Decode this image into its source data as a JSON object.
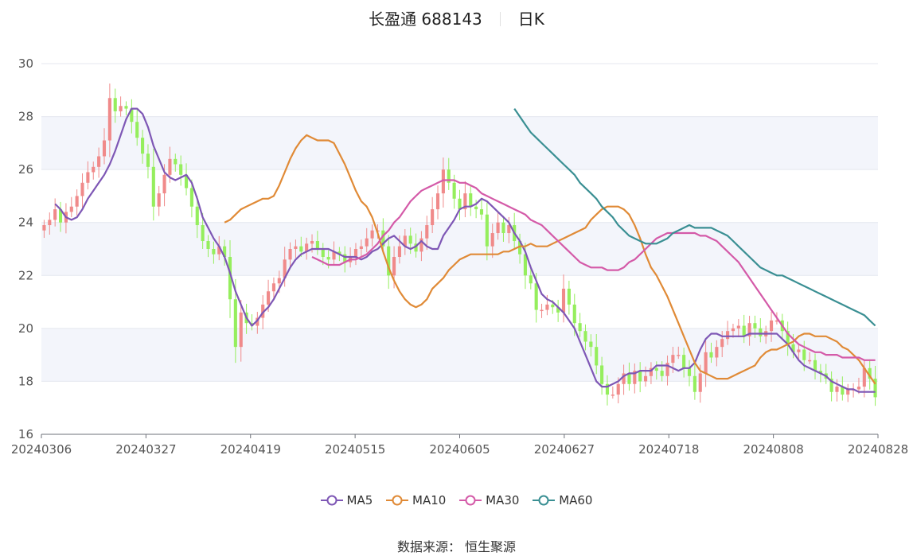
{
  "title": {
    "name": "长盈通 688143",
    "period": "日K"
  },
  "footer": {
    "source_label": "数据来源：",
    "source_name": "恒生聚源"
  },
  "colors": {
    "up": "#f08a8a",
    "down": "#95ee5d",
    "MA5": "#7e57b5",
    "MA10": "#e08a36",
    "MA30": "#d45aa8",
    "MA60": "#3a8f93",
    "grid": "#e4e7ef",
    "band": "#f3f5fb"
  },
  "chart_data": {
    "type": "candlestick",
    "ylim": [
      16,
      30
    ],
    "yticks": [
      16,
      18,
      20,
      22,
      24,
      26,
      28,
      30
    ],
    "xticks": [
      "20240306",
      "20240327",
      "20240419",
      "20240515",
      "20240605",
      "20240627",
      "20240718",
      "20240808",
      "20240828"
    ],
    "legend": [
      "MA5",
      "MA10",
      "MA30",
      "MA60"
    ],
    "closes": [
      23.9,
      24.1,
      24.5,
      24.0,
      24.4,
      24.6,
      25.0,
      25.5,
      25.9,
      26.1,
      26.5,
      27.1,
      28.7,
      28.2,
      28.4,
      28.3,
      27.8,
      27.2,
      26.6,
      26.1,
      24.6,
      25.1,
      25.8,
      26.4,
      26.2,
      25.8,
      25.3,
      24.6,
      23.9,
      23.3,
      23.0,
      22.8,
      23.1,
      22.7,
      21.1,
      19.3,
      20.6,
      20.2,
      20.1,
      20.4,
      20.9,
      21.4,
      21.7,
      21.9,
      22.6,
      23.0,
      23.1,
      22.9,
      23.2,
      23.3,
      23.0,
      22.7,
      22.6,
      22.9,
      22.8,
      22.5,
      22.7,
      23.0,
      23.1,
      23.4,
      23.7,
      23.7,
      23.1,
      22.0,
      22.7,
      23.1,
      23.5,
      23.2,
      22.9,
      23.4,
      23.9,
      24.5,
      25.1,
      26.0,
      25.5,
      24.9,
      24.5,
      25.1,
      24.6,
      24.5,
      24.3,
      23.1,
      23.6,
      24.0,
      23.6,
      23.9,
      23.3,
      22.8,
      22.0,
      21.7,
      20.7,
      20.7,
      20.9,
      20.8,
      20.6,
      21.5,
      20.9,
      20.2,
      19.9,
      19.5,
      19.3,
      18.6,
      17.9,
      17.5,
      17.5,
      17.9,
      18.3,
      17.9,
      18.4,
      18.0,
      18.2,
      18.5,
      18.4,
      18.2,
      18.7,
      19.0,
      19.0,
      18.5,
      18.2,
      17.6,
      18.3,
      19.1,
      18.9,
      19.3,
      19.6,
      19.9,
      20.0,
      20.1,
      19.7,
      20.2,
      20.0,
      19.7,
      19.9,
      20.3,
      20.3,
      19.9,
      19.4,
      19.1,
      19.2,
      18.8,
      18.8,
      18.4,
      18.3,
      18.1,
      17.6,
      17.8,
      17.5,
      17.7,
      17.7,
      17.8,
      18.5,
      18.1,
      17.4
    ],
    "series": [
      {
        "name": "MA5",
        "values": [
          24.7,
          24.5,
          24.2,
          24.1,
          24.2,
          24.5,
          24.9,
          25.2,
          25.5,
          25.8,
          26.2,
          26.7,
          27.3,
          27.9,
          28.3,
          28.3,
          28.1,
          27.6,
          26.9,
          26.4,
          25.9,
          25.7,
          25.6,
          25.7,
          25.8,
          25.5,
          24.9,
          24.2,
          23.8,
          23.4,
          23.1,
          22.7,
          22.1,
          21.4,
          20.9,
          20.4,
          20.1,
          20.3,
          20.6,
          20.8,
          21.1,
          21.5,
          21.9,
          22.3,
          22.6,
          22.8,
          22.9,
          23.0,
          23.0,
          23.0,
          23.0,
          22.9,
          22.8,
          22.7,
          22.7,
          22.7,
          22.6,
          22.7,
          22.9,
          23.0,
          23.2,
          23.4,
          23.5,
          23.3,
          23.1,
          23.0,
          23.1,
          23.3,
          23.1,
          23.0,
          23.0,
          23.5,
          23.8,
          24.1,
          24.5,
          24.6,
          24.6,
          24.7,
          24.9,
          24.8,
          24.6,
          24.4,
          24.2,
          24.0,
          23.6,
          23.3,
          22.9,
          22.3,
          21.8,
          21.3,
          21.1,
          21.0,
          20.8,
          20.6,
          20.3,
          20.0,
          19.5,
          19.0,
          18.5,
          18.0,
          17.8,
          17.8,
          17.9,
          18.0,
          18.2,
          18.3,
          18.3,
          18.4,
          18.4,
          18.4,
          18.6,
          18.6,
          18.6,
          18.5,
          18.4,
          18.5,
          18.5,
          18.7,
          19.2,
          19.6,
          19.8,
          19.8,
          19.7,
          19.7,
          19.7,
          19.7,
          19.7,
          19.8,
          19.8,
          19.8,
          19.8,
          19.8,
          19.8,
          19.6,
          19.4,
          19.1,
          18.8,
          18.6,
          18.5,
          18.4,
          18.3,
          18.2,
          18.0,
          17.9,
          17.8,
          17.7,
          17.7,
          17.6,
          17.6,
          17.6,
          17.6
        ]
      },
      {
        "name": "MA10",
        "values": [
          24.0,
          24.1,
          24.3,
          24.5,
          24.6,
          24.7,
          24.8,
          24.9,
          24.9,
          25.0,
          25.4,
          25.9,
          26.4,
          26.8,
          27.1,
          27.3,
          27.2,
          27.1,
          27.1,
          27.1,
          27.0,
          26.6,
          26.2,
          25.7,
          25.2,
          24.8,
          24.6,
          24.2,
          23.6,
          22.9,
          22.3,
          21.8,
          21.4,
          21.1,
          20.9,
          20.8,
          20.9,
          21.1,
          21.5,
          21.7,
          21.9,
          22.2,
          22.4,
          22.6,
          22.7,
          22.8,
          22.8,
          22.8,
          22.8,
          22.8,
          22.8,
          22.9,
          22.9,
          23.0,
          23.1,
          23.1,
          23.2,
          23.1,
          23.1,
          23.1,
          23.2,
          23.3,
          23.4,
          23.5,
          23.6,
          23.7,
          23.8,
          24.1,
          24.3,
          24.5,
          24.6,
          24.6,
          24.6,
          24.5,
          24.3,
          23.9,
          23.4,
          22.8,
          22.3,
          22.0,
          21.6,
          21.2,
          20.7,
          20.2,
          19.7,
          19.2,
          18.7,
          18.4,
          18.3,
          18.2,
          18.1,
          18.1,
          18.1,
          18.2,
          18.3,
          18.4,
          18.5,
          18.6,
          18.9,
          19.1,
          19.2,
          19.2,
          19.3,
          19.4,
          19.5,
          19.7,
          19.8,
          19.8,
          19.7,
          19.7,
          19.7,
          19.6,
          19.5,
          19.3,
          19.2,
          19.0,
          18.8,
          18.5,
          18.2,
          17.9
        ]
      },
      {
        "name": "MA30",
        "values": [
          22.7,
          22.6,
          22.5,
          22.4,
          22.4,
          22.4,
          22.5,
          22.6,
          22.6,
          22.7,
          22.8,
          23.0,
          23.2,
          23.5,
          23.7,
          24.0,
          24.2,
          24.5,
          24.8,
          25.0,
          25.2,
          25.3,
          25.4,
          25.5,
          25.6,
          25.6,
          25.6,
          25.5,
          25.5,
          25.4,
          25.3,
          25.1,
          25.0,
          24.9,
          24.8,
          24.7,
          24.6,
          24.5,
          24.4,
          24.3,
          24.1,
          24.0,
          23.9,
          23.7,
          23.5,
          23.3,
          23.1,
          22.9,
          22.7,
          22.5,
          22.4,
          22.3,
          22.3,
          22.3,
          22.2,
          22.2,
          22.2,
          22.3,
          22.5,
          22.6,
          22.8,
          23.0,
          23.2,
          23.4,
          23.5,
          23.6,
          23.6,
          23.6,
          23.6,
          23.6,
          23.6,
          23.5,
          23.5,
          23.4,
          23.3,
          23.1,
          22.9,
          22.7,
          22.5,
          22.2,
          21.9,
          21.6,
          21.3,
          21.0,
          20.7,
          20.4,
          20.1,
          19.8,
          19.6,
          19.4,
          19.3,
          19.2,
          19.1,
          19.1,
          19.0,
          19.0,
          19.0,
          18.9,
          18.9,
          18.9,
          18.9,
          18.8,
          18.8,
          18.8
        ]
      },
      {
        "name": "MA60",
        "values": [
          28.3,
          28.0,
          27.7,
          27.4,
          27.2,
          27.0,
          26.8,
          26.6,
          26.4,
          26.2,
          26.0,
          25.8,
          25.5,
          25.3,
          25.1,
          24.9,
          24.6,
          24.4,
          24.2,
          23.9,
          23.7,
          23.5,
          23.4,
          23.3,
          23.2,
          23.2,
          23.2,
          23.3,
          23.4,
          23.6,
          23.7,
          23.8,
          23.9,
          23.8,
          23.8,
          23.8,
          23.8,
          23.7,
          23.6,
          23.5,
          23.3,
          23.1,
          22.9,
          22.7,
          22.5,
          22.3,
          22.2,
          22.1,
          22.0,
          22.0,
          21.9,
          21.8,
          21.7,
          21.6,
          21.5,
          21.4,
          21.3,
          21.2,
          21.1,
          21.0,
          20.9,
          20.8,
          20.7,
          20.6,
          20.5,
          20.3,
          20.1
        ]
      }
    ]
  }
}
